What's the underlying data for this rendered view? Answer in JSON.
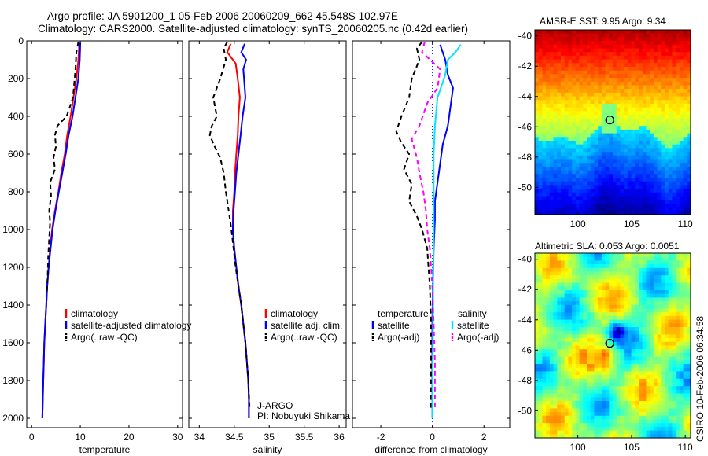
{
  "figure": {
    "title_line1": "Argo profile: JA 5901200_1 05-Feb-2006 20060209_662 45.548S 102.97E",
    "title_line2": "Climatology: CARS2000. Satellite-adjusted climatology: synTS_20060205.nc (0.42d earlier)",
    "credit": "CSIRO 10-Feb-2006 06:34:58",
    "program": "J-ARGO",
    "pi": "PI: Nobuyuki Shikama"
  },
  "colors": {
    "climatology": "#ff0000",
    "satellite": "#0000ff",
    "argo": "#000000",
    "salinity_satellite": "#00e5ff",
    "salinity_argo": "#ff00ff"
  },
  "chart_data": [
    {
      "type": "line",
      "xlabel": "temperature",
      "xlim": [
        -1,
        31
      ],
      "ylim": [
        0,
        2050
      ],
      "y_inverted": true,
      "xticks": [
        0,
        10,
        20,
        30
      ],
      "yticks": [
        0,
        200,
        400,
        600,
        800,
        1000,
        1200,
        1400,
        1600,
        1800,
        2000
      ],
      "legend": [
        "climatology",
        "satellite-adjusted climatology",
        "Argo(..raw -QC)"
      ],
      "series": [
        {
          "name": "climatology",
          "style": "solid",
          "color": "#ff0000",
          "points": [
            [
              9.8,
              10
            ],
            [
              9.6,
              100
            ],
            [
              9.2,
              200
            ],
            [
              8.6,
              300
            ],
            [
              8.0,
              400
            ],
            [
              7.3,
              500
            ],
            [
              6.8,
              600
            ],
            [
              6.1,
              700
            ],
            [
              5.5,
              800
            ],
            [
              4.8,
              900
            ],
            [
              4.2,
              1000
            ],
            [
              3.8,
              1100
            ],
            [
              3.5,
              1200
            ],
            [
              3.2,
              1300
            ],
            [
              3.0,
              1400
            ],
            [
              2.8,
              1500
            ],
            [
              2.6,
              1600
            ],
            [
              2.5,
              1700
            ],
            [
              2.4,
              1800
            ],
            [
              2.3,
              1900
            ],
            [
              2.2,
              2000
            ]
          ]
        },
        {
          "name": "satellite-adjusted climatology",
          "style": "solid",
          "color": "#0000ff",
          "points": [
            [
              10.0,
              10
            ],
            [
              9.9,
              100
            ],
            [
              9.6,
              200
            ],
            [
              9.0,
              300
            ],
            [
              8.4,
              400
            ],
            [
              7.6,
              500
            ],
            [
              7.0,
              600
            ],
            [
              6.3,
              700
            ],
            [
              5.6,
              800
            ],
            [
              4.9,
              900
            ],
            [
              4.3,
              1000
            ],
            [
              3.9,
              1100
            ],
            [
              3.5,
              1200
            ],
            [
              3.2,
              1300
            ],
            [
              3.0,
              1400
            ],
            [
              2.8,
              1500
            ],
            [
              2.6,
              1600
            ],
            [
              2.5,
              1700
            ],
            [
              2.4,
              1800
            ],
            [
              2.3,
              1900
            ],
            [
              2.2,
              2000
            ]
          ]
        },
        {
          "name": "Argo(..raw -QC)",
          "style": "dashed",
          "color": "#000000",
          "points": [
            [
              9.6,
              5
            ],
            [
              9.2,
              60
            ],
            [
              9.0,
              150
            ],
            [
              8.5,
              300
            ],
            [
              7.2,
              400
            ],
            [
              5.3,
              450
            ],
            [
              4.8,
              500
            ],
            [
              5.0,
              560
            ],
            [
              4.5,
              620
            ],
            [
              4.8,
              680
            ],
            [
              3.8,
              750
            ],
            [
              4.0,
              820
            ],
            [
              3.6,
              900
            ],
            [
              3.8,
              960
            ],
            [
              3.6,
              1050
            ],
            [
              3.4,
              1150
            ],
            [
              3.3,
              1250
            ],
            [
              3.1,
              1330
            ]
          ]
        }
      ]
    },
    {
      "type": "line",
      "xlabel": "salinity",
      "xlim": [
        33.85,
        36.1
      ],
      "ylim": [
        0,
        2050
      ],
      "y_inverted": true,
      "xticks": [
        34,
        34.5,
        35,
        35.5,
        36
      ],
      "legend": [
        "climatology",
        "satellite adj. clim.",
        "Argo(..raw -QC)"
      ],
      "series": [
        {
          "name": "climatology",
          "style": "solid",
          "color": "#ff0000",
          "points": [
            [
              34.45,
              15
            ],
            [
              34.4,
              60
            ],
            [
              34.52,
              120
            ],
            [
              34.55,
              200
            ],
            [
              34.58,
              300
            ],
            [
              34.56,
              400
            ],
            [
              34.55,
              500
            ],
            [
              34.53,
              600
            ],
            [
              34.51,
              700
            ],
            [
              34.5,
              800
            ],
            [
              34.48,
              900
            ],
            [
              34.48,
              1000
            ],
            [
              34.5,
              1100
            ],
            [
              34.53,
              1200
            ],
            [
              34.56,
              1300
            ],
            [
              34.6,
              1400
            ],
            [
              34.63,
              1500
            ],
            [
              34.66,
              1600
            ],
            [
              34.68,
              1700
            ],
            [
              34.7,
              1800
            ],
            [
              34.71,
              1900
            ],
            [
              34.71,
              2000
            ]
          ]
        },
        {
          "name": "satellite adj. clim.",
          "style": "solid",
          "color": "#0000ff",
          "points": [
            [
              34.65,
              15
            ],
            [
              34.6,
              60
            ],
            [
              34.67,
              100
            ],
            [
              34.63,
              150
            ],
            [
              34.66,
              300
            ],
            [
              34.62,
              400
            ],
            [
              34.59,
              500
            ],
            [
              34.56,
              600
            ],
            [
              34.53,
              700
            ],
            [
              34.51,
              800
            ],
            [
              34.49,
              900
            ],
            [
              34.48,
              1000
            ],
            [
              34.5,
              1100
            ],
            [
              34.53,
              1200
            ],
            [
              34.56,
              1300
            ],
            [
              34.6,
              1400
            ],
            [
              34.63,
              1500
            ],
            [
              34.66,
              1600
            ],
            [
              34.68,
              1700
            ],
            [
              34.7,
              1800
            ],
            [
              34.71,
              1900
            ],
            [
              34.71,
              2000
            ]
          ]
        },
        {
          "name": "Argo(..raw -QC)",
          "style": "dashed",
          "color": "#000000",
          "points": [
            [
              34.4,
              5
            ],
            [
              34.35,
              40
            ],
            [
              34.38,
              100
            ],
            [
              34.3,
              200
            ],
            [
              34.2,
              300
            ],
            [
              34.25,
              400
            ],
            [
              34.18,
              450
            ],
            [
              34.15,
              500
            ],
            [
              34.22,
              560
            ],
            [
              34.3,
              620
            ],
            [
              34.35,
              700
            ],
            [
              34.38,
              800
            ],
            [
              34.42,
              900
            ],
            [
              34.46,
              1000
            ],
            [
              34.52,
              1200
            ],
            [
              34.6,
              1400
            ],
            [
              34.66,
              1600
            ],
            [
              34.7,
              1800
            ],
            [
              34.72,
              1950
            ]
          ]
        }
      ]
    },
    {
      "type": "line",
      "xlabel": "difference from climatology",
      "xlim": [
        -3.1,
        3.0
      ],
      "ylim": [
        0,
        2050
      ],
      "y_inverted": true,
      "xticks": [
        -2,
        0,
        2
      ],
      "legend_groups": [
        {
          "heading": "temperature",
          "items": [
            "satellite",
            "Argo(-adj)"
          ]
        },
        {
          "heading": "salinity",
          "items": [
            "satellite",
            "Argo(-adj)"
          ]
        }
      ],
      "series": [
        {
          "name": "satellite",
          "group": "temperature",
          "style": "solid",
          "color": "#0000ff",
          "points": [
            [
              0.3,
              20
            ],
            [
              0.5,
              100
            ],
            [
              0.6,
              180
            ],
            [
              0.8,
              250
            ],
            [
              0.7,
              350
            ],
            [
              0.6,
              450
            ],
            [
              0.4,
              550
            ],
            [
              0.3,
              650
            ],
            [
              0.2,
              750
            ],
            [
              0.1,
              850
            ],
            [
              0.1,
              950
            ],
            [
              0.05,
              1100
            ],
            [
              0.02,
              1300
            ],
            [
              0.0,
              1500
            ],
            [
              0.0,
              1700
            ],
            [
              0.0,
              1900
            ],
            [
              0.0,
              2000
            ]
          ]
        },
        {
          "name": "Argo(-adj)",
          "group": "temperature",
          "style": "dashed",
          "color": "#000000",
          "points": [
            [
              -0.4,
              5
            ],
            [
              -0.6,
              40
            ],
            [
              -0.5,
              100
            ],
            [
              -0.8,
              200
            ],
            [
              -0.9,
              300
            ],
            [
              -1.2,
              400
            ],
            [
              -1.4,
              480
            ],
            [
              -1.2,
              540
            ],
            [
              -0.9,
              600
            ],
            [
              -1.1,
              680
            ],
            [
              -0.8,
              760
            ],
            [
              -0.9,
              850
            ],
            [
              -0.6,
              930
            ],
            [
              -0.4,
              1000
            ],
            [
              -0.2,
              1100
            ],
            [
              -0.15,
              1200
            ],
            [
              -0.1,
              1300
            ],
            [
              -0.05,
              1500
            ],
            [
              -0.05,
              1700
            ],
            [
              -0.05,
              1900
            ],
            [
              -0.05,
              1950
            ]
          ]
        },
        {
          "name": "satellite",
          "group": "salinity",
          "style": "solid",
          "color": "#00e5ff",
          "points": [
            [
              1.1,
              20
            ],
            [
              0.9,
              60
            ],
            [
              0.6,
              100
            ],
            [
              0.5,
              180
            ],
            [
              0.2,
              300
            ],
            [
              0.1,
              450
            ],
            [
              0.05,
              600
            ],
            [
              0.05,
              800
            ],
            [
              0.05,
              1000
            ],
            [
              0.03,
              1300
            ],
            [
              0.02,
              1600
            ],
            [
              0.0,
              1900
            ],
            [
              0.0,
              2000
            ]
          ]
        },
        {
          "name": "Argo(-adj)",
          "group": "salinity",
          "style": "dashed",
          "color": "#ff00ff",
          "points": [
            [
              -0.3,
              5
            ],
            [
              -0.4,
              60
            ],
            [
              0.3,
              150
            ],
            [
              0.2,
              250
            ],
            [
              -0.2,
              330
            ],
            [
              -0.5,
              450
            ],
            [
              -0.8,
              520
            ],
            [
              -0.6,
              620
            ],
            [
              -0.5,
              700
            ],
            [
              -0.35,
              800
            ],
            [
              -0.25,
              900
            ],
            [
              -0.2,
              1000
            ],
            [
              -0.1,
              1100
            ],
            [
              -0.05,
              1200
            ],
            [
              0.0,
              1300
            ],
            [
              0.05,
              1500
            ],
            [
              0.1,
              1700
            ],
            [
              0.1,
              1900
            ],
            [
              0.1,
              1950
            ]
          ]
        }
      ]
    },
    {
      "type": "heatmap",
      "title": "AMSR-E SST: 9.95 Argo: 9.34",
      "xlim": [
        96,
        110.5
      ],
      "ylim": [
        -51.8,
        -39.6
      ],
      "xticks": [
        100,
        105,
        110
      ],
      "yticks": [
        -40,
        -42,
        -44,
        -46,
        -48,
        -50
      ],
      "marker": {
        "lon": 102.97,
        "lat": -45.548
      }
    },
    {
      "type": "heatmap",
      "title": "Altimetric SLA: 0.053 Argo: 0.0051",
      "xlim": [
        96,
        110.5
      ],
      "ylim": [
        -51.8,
        -39.6
      ],
      "xticks": [
        100,
        105,
        110
      ],
      "yticks": [
        -40,
        -42,
        -44,
        -46,
        -48,
        -50
      ],
      "marker": {
        "lon": 102.97,
        "lat": -45.548
      }
    }
  ]
}
